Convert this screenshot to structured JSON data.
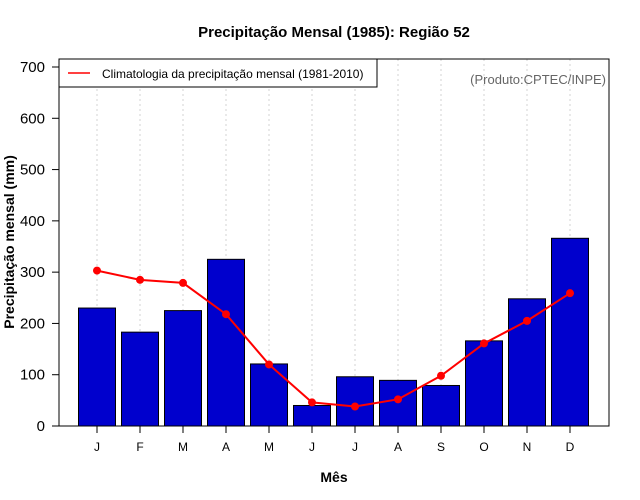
{
  "chart_data": {
    "type": "bar",
    "title": "Precipitação Mensal (1985): Região 52",
    "xlabel": "Mês",
    "ylabel": "Precipitação mensal (mm)",
    "ylim": [
      0,
      716
    ],
    "yticks": [
      0,
      100,
      200,
      300,
      400,
      500,
      600,
      700
    ],
    "grid": "vertical-dotted",
    "categories": [
      "J",
      "F",
      "M",
      "A",
      "M",
      "J",
      "J",
      "A",
      "S",
      "O",
      "N",
      "D"
    ],
    "series": [
      {
        "name": "Precipitação mensal (1985)",
        "type": "bar",
        "color": "#0000CD",
        "values": [
          230,
          183,
          225,
          325,
          121,
          40,
          96,
          89,
          79,
          166,
          248,
          366
        ]
      },
      {
        "name": "Climatologia da precipitação mensal (1981-2010)",
        "type": "line",
        "color": "#FF0000",
        "values": [
          303,
          285,
          279,
          218,
          120,
          46,
          38,
          52,
          98,
          161,
          205,
          259
        ]
      }
    ],
    "legend": {
      "position": "top-left",
      "entries": [
        "Climatologia da precipitação mensal (1981-2010)"
      ]
    },
    "annotation": "(Produto:CPTEC/INPE)"
  }
}
